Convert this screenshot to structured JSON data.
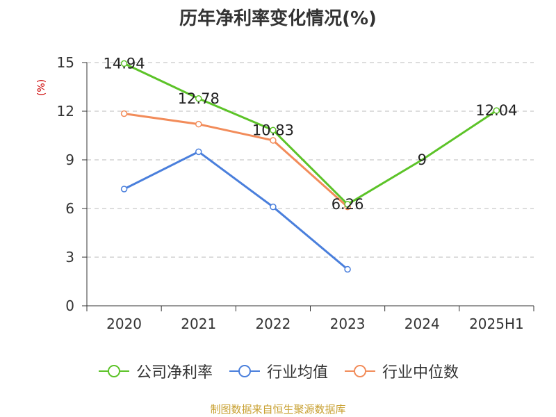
{
  "chart_data": {
    "type": "line",
    "title": "历年净利率变化情况(%)",
    "ylabel": "(%)",
    "categories": [
      "2020",
      "2021",
      "2022",
      "2023",
      "2024",
      "2025H1"
    ],
    "ylim": [
      0,
      15
    ],
    "yticks": [
      "0",
      "3",
      "6",
      "9",
      "12",
      "15"
    ],
    "grid": "horizontal-dashed",
    "legend_position": "bottom",
    "series": [
      {
        "name": "公司净利率",
        "color": "#5cc328",
        "values": [
          14.94,
          12.78,
          10.83,
          6.26,
          9,
          12.04
        ],
        "data_labels": [
          "14.94",
          "12.78",
          "10.83",
          "6.26",
          "9",
          "12.04"
        ],
        "markers": [
          true,
          true,
          true,
          true,
          false,
          true
        ]
      },
      {
        "name": "行业均值",
        "color": "#4a7fdc",
        "values": [
          7.2,
          9.5,
          6.1,
          2.25,
          null,
          null
        ],
        "markers": [
          true,
          true,
          true,
          true,
          false,
          false
        ]
      },
      {
        "name": "行业中位数",
        "color": "#f28c5a",
        "values": [
          11.85,
          11.2,
          10.2,
          6.1,
          null,
          null
        ],
        "markers": [
          true,
          true,
          true,
          true,
          false,
          false
        ]
      }
    ]
  },
  "source_note": "制图数据来自恒生聚源数据库"
}
